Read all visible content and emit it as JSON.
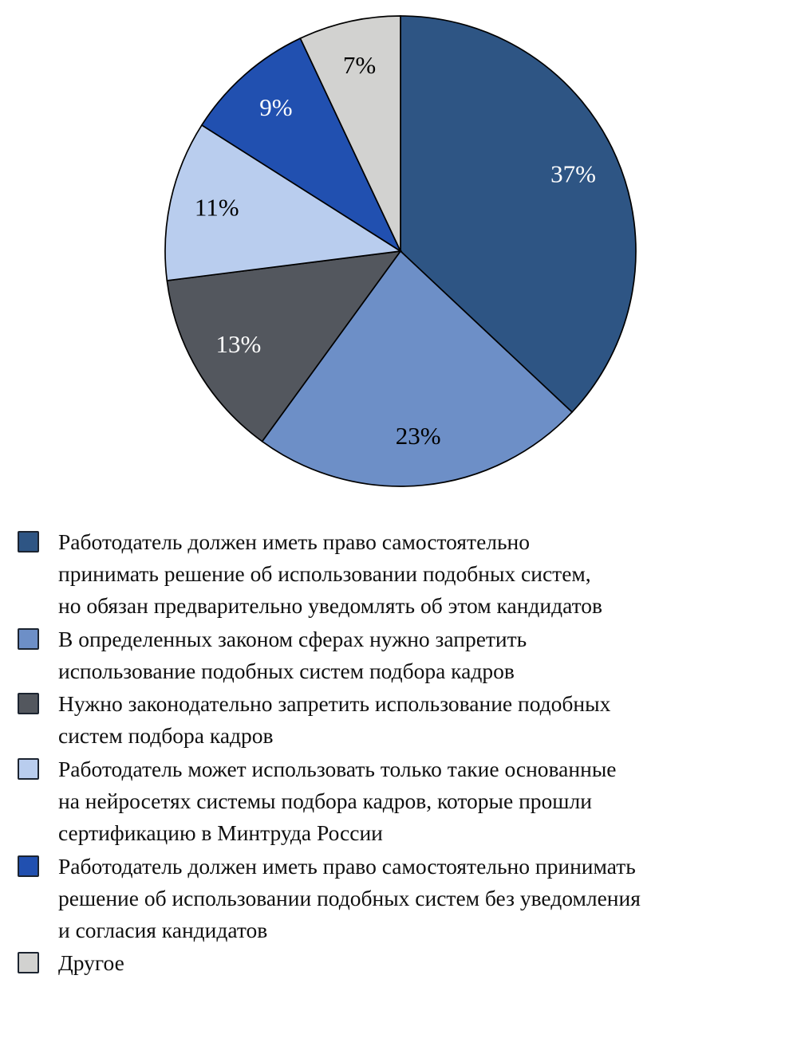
{
  "chart_data": {
    "type": "pie",
    "title": "",
    "unit": "percent",
    "start_angle_deg": 0,
    "direction": "clockwise",
    "stroke_color": "#000000",
    "legend_position": "bottom",
    "slices": [
      {
        "value": 37,
        "pct_label": "37%",
        "color": "#2e5584",
        "label_color": "#ffffff",
        "label": "Работодатель должен иметь право самостоятельно принимать решение об использовании подобных систем, но обязан предварительно уведомлять об этом кандидатов",
        "label_lines": [
          "Работодатель должен иметь право самостоятельно",
          "принимать решение об использовании подобных систем,",
          "но обязан предварительно уведомлять об этом кандидатов"
        ]
      },
      {
        "value": 23,
        "pct_label": "23%",
        "color": "#6d8fc7",
        "label_color": "#000000",
        "label": "В определенных законом сферах нужно запретить использование подобных систем подбора кадров",
        "label_lines": [
          "В определенных законом сферах нужно запретить",
          "использование подобных систем подбора кадров"
        ]
      },
      {
        "value": 13,
        "pct_label": "13%",
        "color": "#53575e",
        "label_color": "#ffffff",
        "label": "Нужно законодательно запретить использование подобных систем подбора кадров",
        "label_lines": [
          "Нужно законодательно запретить использование подобных",
          "систем подбора кадров"
        ]
      },
      {
        "value": 11,
        "pct_label": "11%",
        "color": "#b9cdee",
        "label_color": "#000000",
        "label": "Работодатель может использовать только такие основанные на нейросетях системы подбора кадров, которые прошли сертификацию в Минтруда России",
        "label_lines": [
          "Работодатель может использовать только такие основанные",
          "на нейросетях системы подбора кадров, которые прошли",
          "сертификацию в Минтруда России"
        ]
      },
      {
        "value": 9,
        "pct_label": "9%",
        "color": "#2150b0",
        "label_color": "#ffffff",
        "label": "Работодатель должен иметь право самостоятельно принимать решение об использовании подобных систем без уведомления и согласия кандидатов",
        "label_lines": [
          "Работодатель должен иметь право самостоятельно принимать",
          "решение об использовании подобных систем без уведомления",
          "и согласия кандидатов"
        ]
      },
      {
        "value": 7,
        "pct_label": "7%",
        "color": "#d2d2d0",
        "label_color": "#000000",
        "label": "Другое",
        "label_lines": [
          "Другое"
        ]
      }
    ]
  }
}
